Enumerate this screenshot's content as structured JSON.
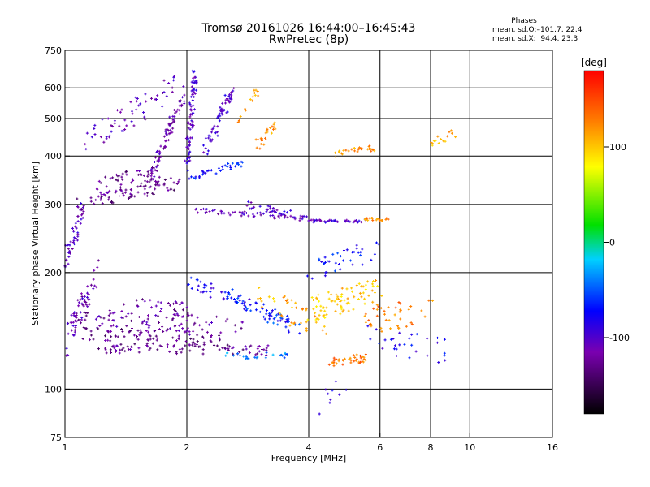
{
  "header": {
    "title_line1": "Tromsø 20161026 16:44:00–16:45:43",
    "title_line2": "RwPretec (8p)",
    "phase_title": "Phases",
    "phase_o": "mean, sd,O:–101.7, 22.4",
    "phase_x": "mean, sd,X:  94.4, 23.3"
  },
  "colorbar": {
    "unit": "[deg]",
    "ticks": [
      100,
      0,
      -100
    ],
    "range": [
      -180,
      180
    ]
  },
  "chart_data": {
    "type": "scatter",
    "title": "Tromsø 20161026 16:44:00–16:45:43",
    "subtitle": "RwPretec (8p)",
    "xlabel": "Frequency [MHz]",
    "ylabel": "Stationary phase Virtual Height [km]",
    "x_scale": "log",
    "y_scale": "log",
    "xlim": [
      1,
      16
    ],
    "ylim": [
      75,
      750
    ],
    "xticks": [
      1,
      2,
      4,
      6,
      8,
      10,
      16
    ],
    "yticks": [
      75,
      100,
      200,
      300,
      400,
      500,
      600,
      750
    ],
    "x_gridlines": [
      2,
      4,
      6,
      8,
      10
    ],
    "y_gridlines": [
      100,
      200,
      300,
      400,
      500,
      600
    ],
    "grid": true,
    "color_scale": "phase [deg], -180 (black) to 180 (red)",
    "series": [
      {
        "x": [
          1.0,
          2.8
        ],
        "y": [
          150,
          145
        ],
        "phase": -120,
        "spread": 0.06,
        "density": 110
      },
      {
        "x": [
          1.1,
          3.3
        ],
        "y": [
          128,
          126
        ],
        "phase": -125,
        "spread": 0.03,
        "density": 80
      },
      {
        "x": [
          1.1,
          2.5
        ],
        "y": [
          140,
          132
        ],
        "phase": -130,
        "spread": 0.04,
        "density": 70
      },
      {
        "x": [
          1.3,
          2.0
        ],
        "y": [
          165,
          160
        ],
        "phase": -120,
        "spread": 0.05,
        "density": 40
      },
      {
        "x": [
          1.0,
          1.2
        ],
        "y": [
          130,
          200
        ],
        "phase": -110,
        "spread": 0.08,
        "density": 60
      },
      {
        "x": [
          1.0,
          1.1
        ],
        "y": [
          210,
          290
        ],
        "phase": -105,
        "spread": 0.06,
        "density": 50
      },
      {
        "x": [
          1.05,
          1.9
        ],
        "y": [
          300,
          340
        ],
        "phase": -130,
        "spread": 0.04,
        "density": 70
      },
      {
        "x": [
          1.2,
          1.7
        ],
        "y": [
          330,
          360
        ],
        "phase": -125,
        "spread": 0.06,
        "density": 55
      },
      {
        "x": [
          1.1,
          1.9
        ],
        "y": [
          430,
          610
        ],
        "phase": -110,
        "spread": 0.08,
        "density": 60
      },
      {
        "x": [
          1.6,
          2.0
        ],
        "y": [
          340,
          600
        ],
        "phase": -115,
        "spread": 0.04,
        "density": 80
      },
      {
        "x": [
          2.0,
          2.1
        ],
        "y": [
          380,
          650
        ],
        "phase": -100,
        "spread": 0.05,
        "density": 80
      },
      {
        "x": [
          2.2,
          2.6
        ],
        "y": [
          400,
          600
        ],
        "phase": -100,
        "spread": 0.05,
        "density": 60
      },
      {
        "x": [
          2.0,
          2.8
        ],
        "y": [
          350,
          385
        ],
        "phase": -70,
        "spread": 0.02,
        "density": 35
      },
      {
        "x": [
          3.0,
          3.3
        ],
        "y": [
          430,
          480
        ],
        "phase": 120,
        "spread": 0.03,
        "density": 25
      },
      {
        "x": [
          2.7,
          3.0
        ],
        "y": [
          500,
          600
        ],
        "phase": 110,
        "spread": 0.03,
        "density": 15
      },
      {
        "x": [
          2.1,
          4.0
        ],
        "y": [
          290,
          275
        ],
        "phase": -110,
        "spread": 0.015,
        "density": 60
      },
      {
        "x": [
          2.8,
          3.8
        ],
        "y": [
          300,
          280
        ],
        "phase": -100,
        "spread": 0.02,
        "density": 30
      },
      {
        "x": [
          4.0,
          5.5
        ],
        "y": [
          272,
          272
        ],
        "phase": -100,
        "spread": 0.01,
        "density": 40
      },
      {
        "x": [
          5.5,
          6.3
        ],
        "y": [
          275,
          275
        ],
        "phase": 120,
        "spread": 0.01,
        "density": 20
      },
      {
        "x": [
          4.6,
          5.8
        ],
        "y": [
          405,
          420
        ],
        "phase": 120,
        "spread": 0.02,
        "density": 30
      },
      {
        "x": [
          2.0,
          3.6
        ],
        "y": [
          190,
          150
        ],
        "phase": -80,
        "spread": 0.04,
        "density": 60
      },
      {
        "x": [
          2.5,
          3.8
        ],
        "y": [
          180,
          140
        ],
        "phase": -60,
        "spread": 0.05,
        "density": 40
      },
      {
        "x": [
          2.5,
          3.6
        ],
        "y": [
          122,
          122
        ],
        "phase": -40,
        "spread": 0.02,
        "density": 25
      },
      {
        "x": [
          3.0,
          4.5
        ],
        "y": [
          175,
          140
        ],
        "phase": 110,
        "spread": 0.08,
        "density": 40
      },
      {
        "x": [
          4.0,
          6.0
        ],
        "y": [
          160,
          180
        ],
        "phase": 100,
        "spread": 0.08,
        "density": 80
      },
      {
        "x": [
          4.0,
          6.0
        ],
        "y": [
          200,
          230
        ],
        "phase": -70,
        "spread": 0.07,
        "density": 40
      },
      {
        "x": [
          4.5,
          5.5
        ],
        "y": [
          118,
          120
        ],
        "phase": 130,
        "spread": 0.03,
        "density": 40
      },
      {
        "x": [
          5.5,
          8.0
        ],
        "y": [
          150,
          160
        ],
        "phase": 130,
        "spread": 0.08,
        "density": 40
      },
      {
        "x": [
          5.5,
          9.0
        ],
        "y": [
          135,
          125
        ],
        "phase": -80,
        "spread": 0.08,
        "density": 30
      },
      {
        "x": [
          8.0,
          9.5
        ],
        "y": [
          430,
          460
        ],
        "phase": 110,
        "spread": 0.03,
        "density": 15
      },
      {
        "x": [
          4.2,
          5.0
        ],
        "y": [
          90,
          105
        ],
        "phase": -90,
        "spread": 0.05,
        "density": 10
      }
    ]
  }
}
